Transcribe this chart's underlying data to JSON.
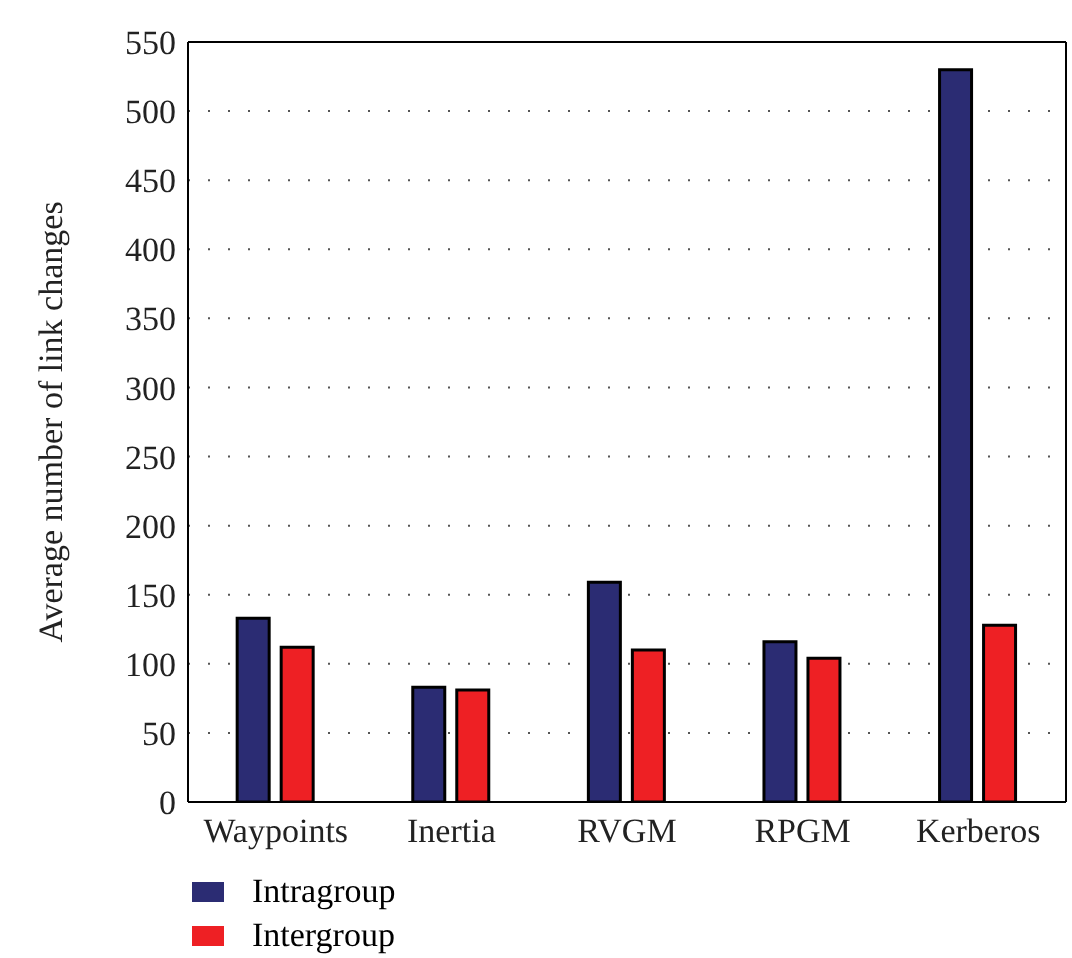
{
  "chart_data": {
    "type": "bar",
    "ylabel": "Average number of link changes",
    "categories": [
      "Waypoints",
      "Inertia",
      "RVGM",
      "RPGM",
      "Kerberos"
    ],
    "series": [
      {
        "name": "Intragroup",
        "color": "#2b2c73",
        "values": [
          133,
          83,
          159,
          116,
          530
        ]
      },
      {
        "name": "Intergroup",
        "color": "#ee2024",
        "values": [
          112,
          81,
          110,
          104,
          128
        ]
      }
    ],
    "ylim": [
      0,
      550
    ],
    "yticks": [
      0,
      50,
      100,
      150,
      200,
      250,
      300,
      350,
      400,
      450,
      500,
      550
    ],
    "grid": "y",
    "legend": "bottom left"
  }
}
